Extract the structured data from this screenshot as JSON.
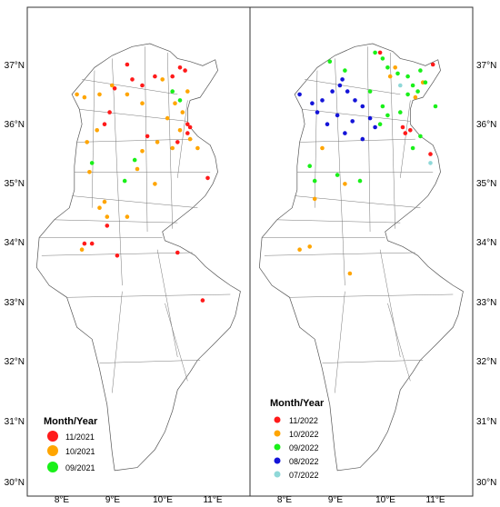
{
  "figure": {
    "left_panel": {
      "legend": {
        "title": "Month/Year",
        "entries": [
          {
            "label": "11/2021",
            "color": "#ff1a1a"
          },
          {
            "label": "10/2021",
            "color": "#ffa500"
          },
          {
            "label": "09/2021",
            "color": "#19f019"
          }
        ]
      },
      "x_ticks": [
        "8°E",
        "9°E",
        "10°E",
        "11°E"
      ],
      "y_ticks": [
        "37°N",
        "36°N",
        "35°N",
        "34°N",
        "33°N",
        "32°N",
        "31°N",
        "30°N"
      ]
    },
    "right_panel": {
      "legend": {
        "title": "Month/Year",
        "entries": [
          {
            "label": "11/2022",
            "color": "#ff1a1a"
          },
          {
            "label": "10/2022",
            "color": "#ffa500"
          },
          {
            "label": "09/2022",
            "color": "#19f019"
          },
          {
            "label": "08/2022",
            "color": "#1414d8"
          },
          {
            "label": "07/2022",
            "color": "#8fd8d8"
          }
        ]
      },
      "x_ticks": [
        "8°E",
        "9°E",
        "10°E",
        "11°E"
      ],
      "y_ticks": [
        "37°N",
        "36°N",
        "35°N",
        "34°N",
        "33°N",
        "32°N",
        "31°N",
        "30°N"
      ]
    }
  },
  "map_data": {
    "lon_range": [
      7.5,
      11.8
    ],
    "lat_range": [
      29.9,
      37.6
    ],
    "outline": [
      [
        9.75,
        37.35
      ],
      [
        9.9,
        37.3
      ],
      [
        10.15,
        37.22
      ],
      [
        10.3,
        37.1
      ],
      [
        10.55,
        37.05
      ],
      [
        10.8,
        36.98
      ],
      [
        11.05,
        37.08
      ],
      [
        11.1,
        36.9
      ],
      [
        10.95,
        36.7
      ],
      [
        10.75,
        36.45
      ],
      [
        10.55,
        36.4
      ],
      [
        10.5,
        36.25
      ],
      [
        10.5,
        36.0
      ],
      [
        10.7,
        35.8
      ],
      [
        10.95,
        35.65
      ],
      [
        11.05,
        35.45
      ],
      [
        11.1,
        35.2
      ],
      [
        11.0,
        35.0
      ],
      [
        10.85,
        34.8
      ],
      [
        10.6,
        34.6
      ],
      [
        10.3,
        34.4
      ],
      [
        10.0,
        34.2
      ],
      [
        10.05,
        34.05
      ],
      [
        10.35,
        33.95
      ],
      [
        10.65,
        33.8
      ],
      [
        10.85,
        33.62
      ],
      [
        11.1,
        33.45
      ],
      [
        11.35,
        33.3
      ],
      [
        11.55,
        33.2
      ],
      [
        11.5,
        33.0
      ],
      [
        11.45,
        32.8
      ],
      [
        11.35,
        32.6
      ],
      [
        11.0,
        32.3
      ],
      [
        10.7,
        32.05
      ],
      [
        10.55,
        31.85
      ],
      [
        10.3,
        31.55
      ],
      [
        10.2,
        31.2
      ],
      [
        10.05,
        30.85
      ],
      [
        9.85,
        30.55
      ],
      [
        9.5,
        30.25
      ],
      [
        9.05,
        30.2
      ],
      [
        9.0,
        30.5
      ],
      [
        8.9,
        31.3
      ],
      [
        8.75,
        31.9
      ],
      [
        8.6,
        32.4
      ],
      [
        8.3,
        32.6
      ],
      [
        8.1,
        33.1
      ],
      [
        7.75,
        33.3
      ],
      [
        7.5,
        33.6
      ],
      [
        7.55,
        34.1
      ],
      [
        7.85,
        34.4
      ],
      [
        8.15,
        34.6
      ],
      [
        8.25,
        34.9
      ],
      [
        8.25,
        35.3
      ],
      [
        8.3,
        35.7
      ],
      [
        8.4,
        36.0
      ],
      [
        8.35,
        36.25
      ],
      [
        8.2,
        36.5
      ],
      [
        8.45,
        36.75
      ],
      [
        8.65,
        36.95
      ],
      [
        9.0,
        37.15
      ],
      [
        9.4,
        37.3
      ],
      [
        9.75,
        37.35
      ]
    ],
    "regions": [
      [
        [
          8.4,
          36.75
        ],
        [
          10.3,
          36.5
        ]
      ],
      [
        [
          8.35,
          36.25
        ],
        [
          10.5,
          36.05
        ]
      ],
      [
        [
          8.3,
          35.7
        ],
        [
          10.6,
          35.75
        ]
      ],
      [
        [
          8.25,
          35.2
        ],
        [
          10.95,
          35.2
        ]
      ],
      [
        [
          8.2,
          34.8
        ],
        [
          10.7,
          34.6
        ]
      ],
      [
        [
          7.85,
          34.4
        ],
        [
          10.3,
          34.35
        ]
      ],
      [
        [
          7.55,
          34.1
        ],
        [
          10.0,
          34.1
        ]
      ],
      [
        [
          7.6,
          33.8
        ],
        [
          10.6,
          33.85
        ]
      ],
      [
        [
          8.1,
          33.1
        ],
        [
          11.35,
          33.15
        ]
      ],
      [
        [
          8.75,
          32.0
        ],
        [
          10.75,
          32.05
        ]
      ],
      [
        [
          9.0,
          37.1
        ],
        [
          9.2,
          33.3
        ]
      ],
      [
        [
          9.65,
          37.3
        ],
        [
          9.7,
          34.2
        ]
      ],
      [
        [
          10.1,
          37.2
        ],
        [
          10.2,
          34.25
        ]
      ],
      [
        [
          8.65,
          36.9
        ],
        [
          8.6,
          34.6
        ]
      ],
      [
        [
          10.5,
          36.4
        ],
        [
          10.3,
          35.1
        ]
      ],
      [
        [
          9.9,
          33.9
        ],
        [
          10.3,
          32.1
        ]
      ],
      [
        [
          10.05,
          33.0
        ],
        [
          10.5,
          31.7
        ]
      ],
      [
        [
          9.2,
          33.2
        ],
        [
          9.0,
          31.5
        ]
      ]
    ],
    "left_points": [
      {
        "lon": 10.45,
        "lat": 36.9,
        "color": "#ff1a1a"
      },
      {
        "lon": 10.35,
        "lat": 36.95,
        "color": "#ff1a1a"
      },
      {
        "lon": 10.2,
        "lat": 36.8,
        "color": "#ff1a1a"
      },
      {
        "lon": 9.85,
        "lat": 36.8,
        "color": "#ff1a1a"
      },
      {
        "lon": 9.6,
        "lat": 36.65,
        "color": "#ff1a1a"
      },
      {
        "lon": 9.4,
        "lat": 36.75,
        "color": "#ff1a1a"
      },
      {
        "lon": 9.05,
        "lat": 36.6,
        "color": "#ff1a1a"
      },
      {
        "lon": 8.95,
        "lat": 36.2,
        "color": "#ff1a1a"
      },
      {
        "lon": 8.85,
        "lat": 36.0,
        "color": "#ff1a1a"
      },
      {
        "lon": 10.5,
        "lat": 36.0,
        "color": "#ff1a1a"
      },
      {
        "lon": 10.55,
        "lat": 35.95,
        "color": "#ff1a1a"
      },
      {
        "lon": 10.5,
        "lat": 35.85,
        "color": "#ff1a1a"
      },
      {
        "lon": 10.3,
        "lat": 35.7,
        "color": "#ff1a1a"
      },
      {
        "lon": 10.9,
        "lat": 35.1,
        "color": "#ff1a1a"
      },
      {
        "lon": 8.6,
        "lat": 34.0,
        "color": "#ff1a1a"
      },
      {
        "lon": 8.45,
        "lat": 34.0,
        "color": "#ff1a1a"
      },
      {
        "lon": 8.9,
        "lat": 34.3,
        "color": "#ff1a1a"
      },
      {
        "lon": 9.1,
        "lat": 33.8,
        "color": "#ff1a1a"
      },
      {
        "lon": 10.3,
        "lat": 33.85,
        "color": "#ff1a1a"
      },
      {
        "lon": 10.8,
        "lat": 33.05,
        "color": "#ff1a1a"
      },
      {
        "lon": 9.7,
        "lat": 35.8,
        "color": "#ff1a1a"
      },
      {
        "lon": 9.3,
        "lat": 37.0,
        "color": "#ff1a1a"
      },
      {
        "lon": 8.3,
        "lat": 36.5,
        "color": "#ffa500"
      },
      {
        "lon": 8.45,
        "lat": 36.45,
        "color": "#ffa500"
      },
      {
        "lon": 8.75,
        "lat": 36.5,
        "color": "#ffa500"
      },
      {
        "lon": 9.0,
        "lat": 36.65,
        "color": "#ffa500"
      },
      {
        "lon": 9.3,
        "lat": 36.5,
        "color": "#ffa500"
      },
      {
        "lon": 9.6,
        "lat": 36.35,
        "color": "#ffa500"
      },
      {
        "lon": 10.25,
        "lat": 36.35,
        "color": "#ffa500"
      },
      {
        "lon": 10.1,
        "lat": 36.1,
        "color": "#ffa500"
      },
      {
        "lon": 10.35,
        "lat": 35.9,
        "color": "#ffa500"
      },
      {
        "lon": 10.55,
        "lat": 35.75,
        "color": "#ffa500"
      },
      {
        "lon": 10.7,
        "lat": 35.6,
        "color": "#ffa500"
      },
      {
        "lon": 10.2,
        "lat": 35.6,
        "color": "#ffa500"
      },
      {
        "lon": 9.9,
        "lat": 35.7,
        "color": "#ffa500"
      },
      {
        "lon": 9.6,
        "lat": 35.55,
        "color": "#ffa500"
      },
      {
        "lon": 8.7,
        "lat": 35.9,
        "color": "#ffa500"
      },
      {
        "lon": 8.5,
        "lat": 35.7,
        "color": "#ffa500"
      },
      {
        "lon": 8.55,
        "lat": 35.2,
        "color": "#ffa500"
      },
      {
        "lon": 8.75,
        "lat": 34.6,
        "color": "#ffa500"
      },
      {
        "lon": 8.9,
        "lat": 34.45,
        "color": "#ffa500"
      },
      {
        "lon": 8.85,
        "lat": 34.7,
        "color": "#ffa500"
      },
      {
        "lon": 8.4,
        "lat": 33.9,
        "color": "#ffa500"
      },
      {
        "lon": 9.3,
        "lat": 34.45,
        "color": "#ffa500"
      },
      {
        "lon": 9.5,
        "lat": 35.25,
        "color": "#ffa500"
      },
      {
        "lon": 9.85,
        "lat": 35.0,
        "color": "#ffa500"
      },
      {
        "lon": 10.0,
        "lat": 36.75,
        "color": "#ffa500"
      },
      {
        "lon": 10.5,
        "lat": 36.55,
        "color": "#ffa500"
      },
      {
        "lon": 10.4,
        "lat": 36.2,
        "color": "#ffa500"
      },
      {
        "lon": 8.6,
        "lat": 35.35,
        "color": "#19f019"
      },
      {
        "lon": 9.45,
        "lat": 35.4,
        "color": "#19f019"
      },
      {
        "lon": 9.25,
        "lat": 35.05,
        "color": "#19f019"
      },
      {
        "lon": 10.2,
        "lat": 36.55,
        "color": "#19f019"
      },
      {
        "lon": 10.35,
        "lat": 36.4,
        "color": "#19f019"
      }
    ],
    "right_points": [
      {
        "lon": 10.95,
        "lat": 37.0,
        "color": "#ff1a1a"
      },
      {
        "lon": 9.9,
        "lat": 37.2,
        "color": "#ff1a1a"
      },
      {
        "lon": 10.35,
        "lat": 35.95,
        "color": "#ff1a1a"
      },
      {
        "lon": 10.4,
        "lat": 35.85,
        "color": "#ff1a1a"
      },
      {
        "lon": 10.5,
        "lat": 35.9,
        "color": "#ff1a1a"
      },
      {
        "lon": 10.9,
        "lat": 35.5,
        "color": "#ff1a1a"
      },
      {
        "lon": 10.2,
        "lat": 36.95,
        "color": "#ffa500"
      },
      {
        "lon": 10.1,
        "lat": 36.8,
        "color": "#ffa500"
      },
      {
        "lon": 10.75,
        "lat": 36.7,
        "color": "#ffa500"
      },
      {
        "lon": 8.75,
        "lat": 35.6,
        "color": "#ffa500"
      },
      {
        "lon": 9.2,
        "lat": 35.0,
        "color": "#ffa500"
      },
      {
        "lon": 8.6,
        "lat": 34.75,
        "color": "#ffa500"
      },
      {
        "lon": 8.3,
        "lat": 33.9,
        "color": "#ffa500"
      },
      {
        "lon": 8.5,
        "lat": 33.95,
        "color": "#ffa500"
      },
      {
        "lon": 9.3,
        "lat": 33.5,
        "color": "#ffa500"
      },
      {
        "lon": 10.6,
        "lat": 36.45,
        "color": "#ffa500"
      },
      {
        "lon": 9.8,
        "lat": 37.2,
        "color": "#19f019"
      },
      {
        "lon": 9.95,
        "lat": 37.1,
        "color": "#19f019"
      },
      {
        "lon": 10.05,
        "lat": 36.95,
        "color": "#19f019"
      },
      {
        "lon": 10.25,
        "lat": 36.85,
        "color": "#19f019"
      },
      {
        "lon": 10.45,
        "lat": 36.8,
        "color": "#19f019"
      },
      {
        "lon": 10.55,
        "lat": 36.65,
        "color": "#19f019"
      },
      {
        "lon": 10.65,
        "lat": 36.55,
        "color": "#19f019"
      },
      {
        "lon": 10.8,
        "lat": 36.7,
        "color": "#19f019"
      },
      {
        "lon": 10.7,
        "lat": 36.9,
        "color": "#19f019"
      },
      {
        "lon": 10.45,
        "lat": 36.5,
        "color": "#19f019"
      },
      {
        "lon": 9.7,
        "lat": 36.55,
        "color": "#19f019"
      },
      {
        "lon": 9.95,
        "lat": 36.3,
        "color": "#19f019"
      },
      {
        "lon": 10.05,
        "lat": 36.15,
        "color": "#19f019"
      },
      {
        "lon": 10.3,
        "lat": 36.2,
        "color": "#19f019"
      },
      {
        "lon": 9.9,
        "lat": 36.0,
        "color": "#19f019"
      },
      {
        "lon": 9.2,
        "lat": 36.9,
        "color": "#19f019"
      },
      {
        "lon": 8.9,
        "lat": 37.05,
        "color": "#19f019"
      },
      {
        "lon": 8.5,
        "lat": 35.3,
        "color": "#19f019"
      },
      {
        "lon": 8.6,
        "lat": 35.05,
        "color": "#19f019"
      },
      {
        "lon": 9.05,
        "lat": 35.15,
        "color": "#19f019"
      },
      {
        "lon": 9.5,
        "lat": 35.05,
        "color": "#19f019"
      },
      {
        "lon": 10.7,
        "lat": 35.8,
        "color": "#19f019"
      },
      {
        "lon": 10.55,
        "lat": 35.6,
        "color": "#19f019"
      },
      {
        "lon": 11.0,
        "lat": 36.3,
        "color": "#19f019"
      },
      {
        "lon": 8.3,
        "lat": 36.5,
        "color": "#1414d8"
      },
      {
        "lon": 8.55,
        "lat": 36.35,
        "color": "#1414d8"
      },
      {
        "lon": 8.75,
        "lat": 36.4,
        "color": "#1414d8"
      },
      {
        "lon": 8.95,
        "lat": 36.55,
        "color": "#1414d8"
      },
      {
        "lon": 9.1,
        "lat": 36.65,
        "color": "#1414d8"
      },
      {
        "lon": 9.25,
        "lat": 36.55,
        "color": "#1414d8"
      },
      {
        "lon": 9.4,
        "lat": 36.4,
        "color": "#1414d8"
      },
      {
        "lon": 9.55,
        "lat": 36.3,
        "color": "#1414d8"
      },
      {
        "lon": 9.7,
        "lat": 36.1,
        "color": "#1414d8"
      },
      {
        "lon": 9.35,
        "lat": 36.05,
        "color": "#1414d8"
      },
      {
        "lon": 9.05,
        "lat": 36.15,
        "color": "#1414d8"
      },
      {
        "lon": 8.85,
        "lat": 36.0,
        "color": "#1414d8"
      },
      {
        "lon": 9.2,
        "lat": 35.85,
        "color": "#1414d8"
      },
      {
        "lon": 9.55,
        "lat": 35.75,
        "color": "#1414d8"
      },
      {
        "lon": 9.8,
        "lat": 35.95,
        "color": "#1414d8"
      },
      {
        "lon": 9.15,
        "lat": 36.75,
        "color": "#1414d8"
      },
      {
        "lon": 8.65,
        "lat": 36.2,
        "color": "#1414d8"
      },
      {
        "lon": 10.3,
        "lat": 36.65,
        "color": "#8fd8d8"
      },
      {
        "lon": 10.9,
        "lat": 35.35,
        "color": "#8fd8d8"
      }
    ]
  }
}
